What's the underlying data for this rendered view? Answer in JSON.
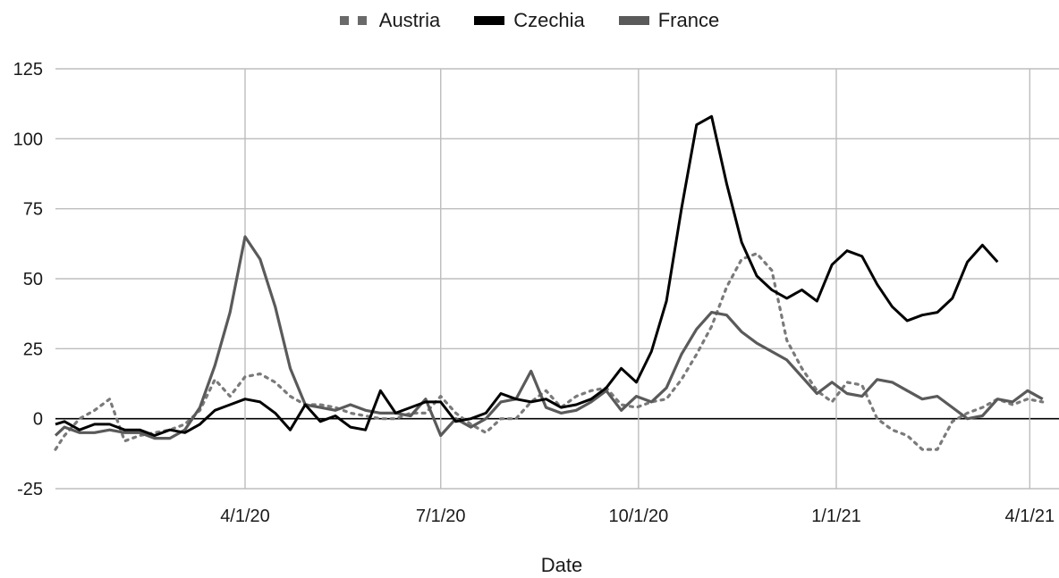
{
  "colors": {
    "austria": "#7a7a7a",
    "czechia": "#000000",
    "france": "#5a5a5a",
    "grid": "#bdbdbd",
    "zero_line": "#000000"
  },
  "chart_data": {
    "type": "line",
    "title": "",
    "xlabel": "Date",
    "ylabel": "",
    "ylim": [
      -25,
      125
    ],
    "yticks": [
      "-25",
      "0",
      "25",
      "50",
      "75",
      "100",
      "125"
    ],
    "xticks": [
      "4/1/20",
      "7/1/20",
      "10/1/20",
      "1/1/21",
      "4/1/21"
    ],
    "legend_position": "top-center",
    "grid": true,
    "x_unit": "week",
    "x": [
      "2020-01-01",
      "2020-01-08",
      "2020-01-15",
      "2020-01-22",
      "2020-01-29",
      "2020-02-05",
      "2020-02-12",
      "2020-02-19",
      "2020-02-26",
      "2020-03-04",
      "2020-03-11",
      "2020-03-18",
      "2020-03-25",
      "2020-04-01",
      "2020-04-08",
      "2020-04-15",
      "2020-04-22",
      "2020-04-29",
      "2020-05-06",
      "2020-05-13",
      "2020-05-20",
      "2020-05-27",
      "2020-06-03",
      "2020-06-10",
      "2020-06-17",
      "2020-06-24",
      "2020-07-01",
      "2020-07-08",
      "2020-07-15",
      "2020-07-22",
      "2020-07-29",
      "2020-08-05",
      "2020-08-12",
      "2020-08-19",
      "2020-08-26",
      "2020-09-02",
      "2020-09-09",
      "2020-09-16",
      "2020-09-23",
      "2020-09-30",
      "2020-10-07",
      "2020-10-14",
      "2020-10-21",
      "2020-10-28",
      "2020-11-04",
      "2020-11-11",
      "2020-11-18",
      "2020-11-25",
      "2020-12-02",
      "2020-12-09",
      "2020-12-16",
      "2020-12-23",
      "2020-12-30",
      "2021-01-06",
      "2021-01-13",
      "2021-01-20",
      "2021-01-27",
      "2021-02-03",
      "2021-02-10",
      "2021-02-17",
      "2021-02-24",
      "2021-03-03",
      "2021-03-10",
      "2021-03-17",
      "2021-03-24",
      "2021-03-31",
      "2021-04-07"
    ],
    "series": [
      {
        "name": "Austria",
        "style": "dotted",
        "values": [
          -11,
          -6,
          0,
          3,
          7,
          -8,
          -6,
          -5,
          -4,
          -2,
          3,
          14,
          8,
          15,
          16,
          13,
          8,
          5,
          5,
          4,
          2,
          1,
          0,
          0,
          2,
          2,
          8,
          2,
          -2,
          -5,
          0,
          0,
          6,
          10,
          4,
          8,
          10,
          11,
          5,
          4,
          6,
          7,
          14,
          23,
          33,
          47,
          57,
          59,
          53,
          28,
          18,
          10,
          6,
          13,
          12,
          0,
          -4,
          -6,
          -11,
          -11,
          -1,
          2,
          4,
          7,
          5,
          7,
          6
        ]
      },
      {
        "name": "Czechia",
        "style": "solid",
        "values": [
          -2,
          -1,
          -4,
          -2,
          -2,
          -4,
          -4,
          -6,
          -4,
          -5,
          -2,
          3,
          5,
          7,
          6,
          2,
          -4,
          5,
          -1,
          1,
          -3,
          -4,
          10,
          2,
          4,
          6,
          6,
          -1,
          0,
          2,
          9,
          7,
          6,
          7,
          4,
          5,
          7,
          11,
          18,
          13,
          24,
          42,
          75,
          105,
          108,
          84,
          63,
          51,
          46,
          43,
          46,
          42,
          55,
          60,
          58,
          48,
          40,
          35,
          37,
          38,
          43,
          56,
          62,
          56,
          null,
          null,
          null
        ]
      },
      {
        "name": "France",
        "style": "solid",
        "values": [
          -6,
          -3,
          -5,
          -5,
          -4,
          -5,
          -5,
          -7,
          -7,
          -4,
          4,
          19,
          38,
          65,
          57,
          40,
          18,
          5,
          4,
          3,
          5,
          3,
          2,
          2,
          1,
          7,
          -6,
          0,
          -3,
          0,
          6,
          7,
          17,
          4,
          2,
          3,
          6,
          10,
          3,
          8,
          6,
          11,
          23,
          32,
          38,
          37,
          31,
          27,
          24,
          21,
          15,
          9,
          13,
          9,
          8,
          14,
          13,
          10,
          7,
          8,
          4,
          0,
          1,
          7,
          6,
          10,
          7
        ]
      }
    ]
  }
}
